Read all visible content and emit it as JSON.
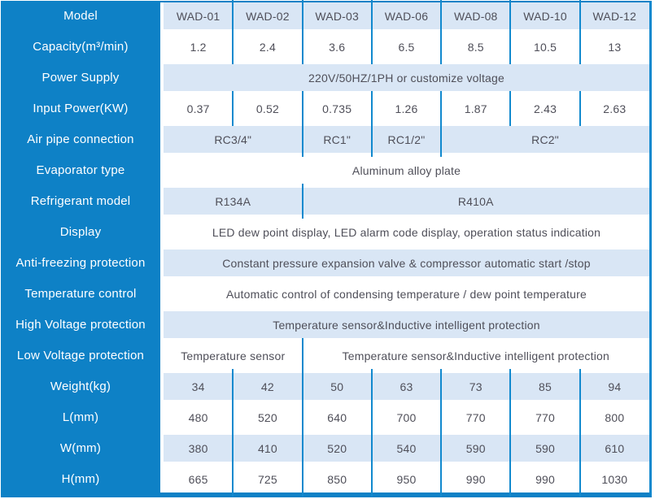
{
  "colors": {
    "accent_blue": "#0e81c6",
    "divider_blue": "#1189ce",
    "row_light_blue": "#d9e6f5",
    "row_white": "#ffffff",
    "text_dark": "#4f4f59",
    "text_white": "#ffffff"
  },
  "chart_data": {
    "type": "table",
    "title": "",
    "columns": [
      "Model",
      "WAD-01",
      "WAD-02",
      "WAD-03",
      "WAD-06",
      "WAD-08",
      "WAD-10",
      "WAD-12"
    ],
    "rows": [
      [
        "Capacity(m³/min)",
        "1.2",
        "2.4",
        "3.6",
        "6.5",
        "8.5",
        "10.5",
        "13"
      ],
      [
        "Power Supply",
        "220V/50HZ/1PH or customize voltage"
      ],
      [
        "Input Power(KW)",
        "0.37",
        "0.52",
        "0.735",
        "1.26",
        "1.87",
        "2.43",
        "2.63"
      ],
      [
        "Air pipe connection",
        "RC3/4\"",
        "RC3/4\"",
        "RC1\"",
        "RC1/2\"",
        "RC2\"",
        "RC2\"",
        "RC2\""
      ],
      [
        "Evaporator type",
        "Aluminum alloy plate"
      ],
      [
        "Refrigerant model",
        "R134A",
        "R134A",
        "R410A",
        "R410A",
        "R410A",
        "R410A",
        "R410A"
      ],
      [
        "Display",
        "LED dew point display, LED alarm code display, operation status indication"
      ],
      [
        "Anti-freezing protection",
        "Constant pressure expansion valve & compressor automatic start /stop"
      ],
      [
        "Temperature control",
        "Automatic control of condensing temperature / dew point temperature"
      ],
      [
        "High Voltage protection",
        "Temperature sensor&Inductive intelligent protection"
      ],
      [
        "Low Voltage protection",
        "Temperature sensor",
        "Temperature sensor",
        "Temperature sensor&Inductive intelligent protection",
        "",
        "",
        "",
        ""
      ],
      [
        "Weight(kg)",
        "34",
        "42",
        "50",
        "63",
        "73",
        "85",
        "94"
      ],
      [
        "L(mm)",
        "480",
        "520",
        "640",
        "700",
        "770",
        "770",
        "800"
      ],
      [
        "W(mm)",
        "380",
        "410",
        "520",
        "540",
        "590",
        "590",
        "610"
      ],
      [
        "H(mm)",
        "665",
        "725",
        "850",
        "950",
        "990",
        "990",
        "1030"
      ]
    ]
  },
  "table": {
    "rows": [
      {
        "label": "Model",
        "cells": [
          {
            "text": "WAD-01"
          },
          {
            "text": "WAD-02"
          },
          {
            "text": "WAD-03"
          },
          {
            "text": "WAD-06"
          },
          {
            "text": "WAD-08"
          },
          {
            "text": "WAD-10"
          },
          {
            "text": "WAD-12"
          }
        ]
      },
      {
        "label": "Capacity(m³/min)",
        "cells": [
          {
            "text": "1.2"
          },
          {
            "text": "2.4"
          },
          {
            "text": "3.6"
          },
          {
            "text": "6.5"
          },
          {
            "text": "8.5"
          },
          {
            "text": "10.5"
          },
          {
            "text": "13"
          }
        ]
      },
      {
        "label": "Power Supply",
        "cells": [
          {
            "text": "220V/50HZ/1PH or customize voltage"
          }
        ]
      },
      {
        "label": "Input Power(KW)",
        "cells": [
          {
            "text": "0.37"
          },
          {
            "text": "0.52"
          },
          {
            "text": "0.735"
          },
          {
            "text": "1.26"
          },
          {
            "text": "1.87"
          },
          {
            "text": "2.43"
          },
          {
            "text": "2.63"
          }
        ]
      },
      {
        "label": "Air pipe connection",
        "cells": [
          {
            "text": "RC3/4\""
          },
          {
            "text": "RC1\""
          },
          {
            "text": "RC1/2\""
          },
          {
            "text": "RC2\""
          }
        ]
      },
      {
        "label": "Evaporator type",
        "cells": [
          {
            "text": "Aluminum alloy plate"
          }
        ]
      },
      {
        "label": "Refrigerant model",
        "cells": [
          {
            "text": "R134A"
          },
          {
            "text": "R410A"
          }
        ]
      },
      {
        "label": "Display",
        "cells": [
          {
            "text": "LED dew point display, LED alarm code display, operation status indication"
          }
        ]
      },
      {
        "label": "Anti-freezing protection",
        "cells": [
          {
            "text": "Constant pressure expansion valve & compressor automatic start /stop"
          }
        ]
      },
      {
        "label": "Temperature control",
        "cells": [
          {
            "text": "Automatic control of condensing temperature / dew point temperature"
          }
        ]
      },
      {
        "label": "High Voltage protection",
        "cells": [
          {
            "text": "Temperature sensor&Inductive intelligent protection"
          }
        ]
      },
      {
        "label": "Low Voltage protection",
        "cells": [
          {
            "text": "Temperature sensor"
          },
          {
            "text": "Temperature sensor&Inductive intelligent protection"
          }
        ]
      },
      {
        "label": "Weight(kg)",
        "cells": [
          {
            "text": "34"
          },
          {
            "text": "42"
          },
          {
            "text": "50"
          },
          {
            "text": "63"
          },
          {
            "text": "73"
          },
          {
            "text": "85"
          },
          {
            "text": "94"
          }
        ]
      },
      {
        "label": "L(mm)",
        "cells": [
          {
            "text": "480"
          },
          {
            "text": "520"
          },
          {
            "text": "640"
          },
          {
            "text": "700"
          },
          {
            "text": "770"
          },
          {
            "text": "770"
          },
          {
            "text": "800"
          }
        ]
      },
      {
        "label": "W(mm)",
        "cells": [
          {
            "text": "380"
          },
          {
            "text": "410"
          },
          {
            "text": "520"
          },
          {
            "text": "540"
          },
          {
            "text": "590"
          },
          {
            "text": "590"
          },
          {
            "text": "610"
          }
        ]
      },
      {
        "label": "H(mm)",
        "cells": [
          {
            "text": "665"
          },
          {
            "text": "725"
          },
          {
            "text": "850"
          },
          {
            "text": "950"
          },
          {
            "text": "990"
          },
          {
            "text": "990"
          },
          {
            "text": "1030"
          }
        ]
      }
    ]
  }
}
